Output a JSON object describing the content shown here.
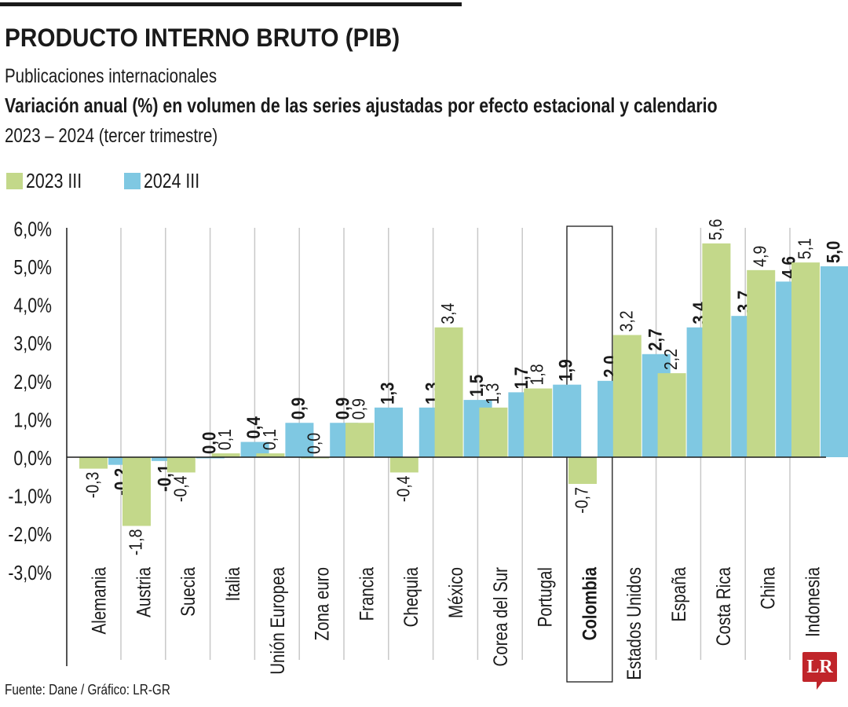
{
  "header": {
    "title": "PRODUCTO INTERNO BRUTO (PIB)",
    "subtitle1": "Publicaciones internacionales",
    "subtitle2": "Variación anual (%) en volumen de las series ajustadas por efecto estacional y calendario",
    "subtitle3": "2023 – 2024 (tercer trimestre)"
  },
  "legend": [
    {
      "label": "2023 III",
      "color": "#c3d88a"
    },
    {
      "label": "2024 III",
      "color": "#7fc8e2"
    }
  ],
  "footer": {
    "source": "Fuente: Dane / Gráfico: LR-GR",
    "logo": "LR"
  },
  "chart_data": {
    "type": "bar",
    "title": "PRODUCTO INTERNO BRUTO (PIB)",
    "xlabel": "",
    "ylabel": "Variación anual (%)",
    "ylim": [
      -3.0,
      6.0
    ],
    "yticks": [
      6.0,
      5.0,
      4.0,
      3.0,
      2.0,
      1.0,
      0.0,
      -1.0,
      -2.0,
      -3.0
    ],
    "ytick_labels": [
      "6,0%",
      "5,0%",
      "4,0%",
      "3,0%",
      "2,0%",
      "1,0%",
      "0,0%",
      "-1,0%",
      "-2,0%",
      "-3,0%"
    ],
    "grid": "vertical category separators",
    "legend_position": "top-left",
    "highlight_category": "Colombia",
    "categories": [
      "Alemania",
      "Austria",
      "Suecia",
      "Italia",
      "Unión Europea",
      "Zona euro",
      "Francia",
      "Chequia",
      "México",
      "Corea del Sur",
      "Portugal",
      "Colombia",
      "Estados Unidos",
      "España",
      "Costa Rica",
      "China",
      "Indonesia"
    ],
    "series": [
      {
        "name": "2023 III",
        "color": "#c3d88a",
        "values": [
          -0.3,
          -1.8,
          -0.4,
          0.1,
          0.1,
          0.0,
          0.9,
          -0.4,
          3.4,
          1.3,
          1.8,
          -0.7,
          3.2,
          2.2,
          5.6,
          4.9,
          5.1
        ],
        "labels": [
          "-0,3",
          "-1,8",
          "-0,4",
          "0,1",
          "0,1",
          "0,0",
          "0,9",
          "-0,4",
          "3,4",
          "1,3",
          "1,8",
          "-0,7",
          "3,2",
          "2,2",
          "5,6",
          "4,9",
          "5,1"
        ]
      },
      {
        "name": "2024 III",
        "color": "#7fc8e2",
        "values": [
          -0.2,
          -0.1,
          0.0,
          0.4,
          0.9,
          0.9,
          1.3,
          1.3,
          1.5,
          1.7,
          1.9,
          2.0,
          2.7,
          3.4,
          3.7,
          4.6,
          5.0
        ],
        "labels": [
          "-0,2",
          "-0,1",
          "0,0",
          "0,4",
          "0,9",
          "0,9",
          "1,3",
          "1,3",
          "1,5",
          "1,7",
          "1,9",
          "2,0",
          "2,7",
          "3,4",
          "3,7",
          "4,6",
          "5,0"
        ]
      }
    ]
  }
}
